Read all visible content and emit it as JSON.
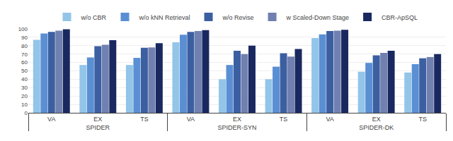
{
  "chart_data": {
    "type": "bar",
    "categories": [
      [
        "SPIDER",
        "VA"
      ],
      [
        "SPIDER",
        "EX"
      ],
      [
        "SPIDER",
        "TS"
      ],
      [
        "SPIDER-SYN",
        "VA"
      ],
      [
        "SPIDER-SYN",
        "EX"
      ],
      [
        "SPIDER-SYN",
        "TS"
      ],
      [
        "SPIDER-DK",
        "VA"
      ],
      [
        "SPIDER-DK",
        "EX"
      ],
      [
        "SPIDER-DK",
        "TS"
      ]
    ],
    "series": [
      {
        "name": "w/o CBR",
        "color": "#92C5E8",
        "values": [
          87.0,
          57.0,
          57.0,
          84.0,
          40.0,
          40.0,
          89.0,
          49.0,
          48.0
        ]
      },
      {
        "name": "w/o kNN Retrieval",
        "color": "#5B8FD4",
        "values": [
          94.5,
          66.0,
          65.5,
          93.0,
          57.0,
          55.0,
          93.5,
          59.5,
          58.0
        ]
      },
      {
        "name": "w/o Revise",
        "color": "#3B5FA0",
        "values": [
          96.5,
          79.5,
          77.5,
          96.5,
          74.0,
          71.0,
          97.5,
          68.5,
          65.0
        ]
      },
      {
        "name": "w Scaled-Down Stage",
        "color": "#7080B0",
        "values": [
          98.0,
          81.0,
          78.0,
          97.5,
          70.0,
          67.0,
          98.0,
          71.5,
          66.5
        ]
      },
      {
        "name": "CBR-ApSQL",
        "color": "#1A2860",
        "values": [
          99.5,
          86.5,
          83.0,
          98.5,
          80.0,
          76.0,
          99.0,
          74.0,
          70.0
        ]
      }
    ],
    "ylim": [
      0,
      100
    ],
    "yticks": [
      0,
      10,
      20,
      30,
      40,
      50,
      60,
      70,
      80,
      90,
      100
    ],
    "grid": true,
    "legend": "top"
  }
}
